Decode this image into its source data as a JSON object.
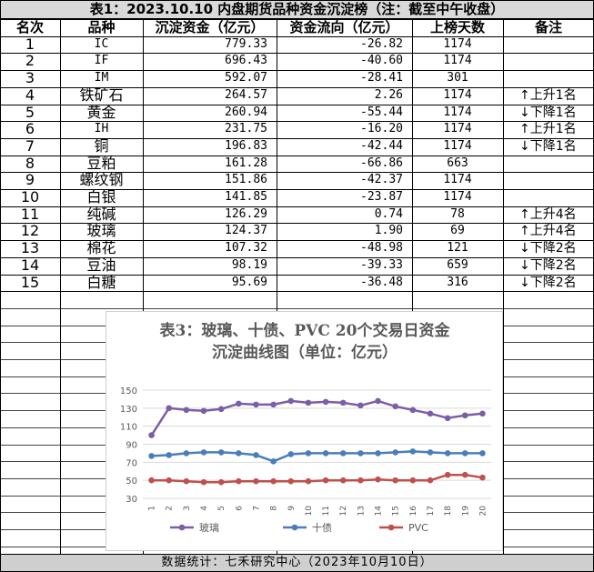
{
  "table": {
    "title": "表1：2023.10.10 内盘期货品种资金沉淀榜（注：截至中午收盘）",
    "headers": [
      "名次",
      "品种",
      "沉淀资金（亿元）",
      "资金流向（亿元）",
      "上榜天数",
      "备注"
    ],
    "rows": [
      {
        "rank": "1",
        "name": "IC",
        "fund": "779.33",
        "flow": "-26.82",
        "days": "1174",
        "arrow": "",
        "note": ""
      },
      {
        "rank": "2",
        "name": "IF",
        "fund": "696.43",
        "flow": "-40.60",
        "days": "1174",
        "arrow": "",
        "note": ""
      },
      {
        "rank": "3",
        "name": "IM",
        "fund": "592.07",
        "flow": "-28.41",
        "days": "301",
        "arrow": "",
        "note": ""
      },
      {
        "rank": "4",
        "name": "铁矿石",
        "fund": "264.57",
        "flow": "2.26",
        "days": "1174",
        "arrow": "↑",
        "note": "上升1名"
      },
      {
        "rank": "5",
        "name": "黄金",
        "fund": "260.94",
        "flow": "-55.44",
        "days": "1174",
        "arrow": "↓",
        "note": "下降1名"
      },
      {
        "rank": "6",
        "name": "IH",
        "fund": "231.75",
        "flow": "-16.20",
        "days": "1174",
        "arrow": "↑",
        "note": "上升1名"
      },
      {
        "rank": "7",
        "name": "铜",
        "fund": "196.83",
        "flow": "-42.44",
        "days": "1174",
        "arrow": "↓",
        "note": "下降1名"
      },
      {
        "rank": "8",
        "name": "豆粕",
        "fund": "161.28",
        "flow": "-66.86",
        "days": "663",
        "arrow": "",
        "note": ""
      },
      {
        "rank": "9",
        "name": "螺纹钢",
        "fund": "151.86",
        "flow": "-42.37",
        "days": "1174",
        "arrow": "",
        "note": ""
      },
      {
        "rank": "10",
        "name": "白银",
        "fund": "141.85",
        "flow": "-23.87",
        "days": "1174",
        "arrow": "",
        "note": ""
      },
      {
        "rank": "11",
        "name": "纯碱",
        "fund": "126.29",
        "flow": "0.74",
        "days": "78",
        "arrow": "↑",
        "note": "上升4名"
      },
      {
        "rank": "12",
        "name": "玻璃",
        "fund": "124.37",
        "flow": "1.90",
        "days": "69",
        "arrow": "↑",
        "note": "上升4名"
      },
      {
        "rank": "13",
        "name": "棉花",
        "fund": "107.32",
        "flow": "-48.98",
        "days": "121",
        "arrow": "↓",
        "note": "下降2名"
      },
      {
        "rank": "14",
        "name": "豆油",
        "fund": "98.19",
        "flow": "-39.33",
        "days": "659",
        "arrow": "↓",
        "note": "下降2名"
      },
      {
        "rank": "15",
        "name": "白糖",
        "fund": "95.69",
        "flow": "-36.48",
        "days": "316",
        "arrow": "↓",
        "note": "下降2名"
      }
    ]
  },
  "footer": "数据统计：七禾研究中心（2023年10月10日）",
  "chart_data": {
    "type": "line",
    "title": "表3：玻璃、十债、PVC 20个交易日资金沉淀曲线图（单位：亿元）",
    "title_lines": [
      "表3：玻璃、十债、PVC 20个交易日资金",
      "沉淀曲线图（单位：亿元）"
    ],
    "x": [
      "1",
      "2",
      "3",
      "4",
      "5",
      "6",
      "7",
      "8",
      "9",
      "10",
      "11",
      "12",
      "13",
      "14",
      "15",
      "16",
      "17",
      "18",
      "19",
      "20"
    ],
    "ylim": [
      30,
      150
    ],
    "yticks": [
      30,
      50,
      70,
      90,
      110,
      130,
      150
    ],
    "grid": true,
    "legend_position": "bottom",
    "series": [
      {
        "name": "玻璃",
        "color": "#7b5ea7",
        "values": [
          100,
          130,
          128,
          127,
          129,
          135,
          134,
          134,
          138,
          136,
          137,
          136,
          133,
          138,
          132,
          128,
          124,
          119,
          122,
          124
        ]
      },
      {
        "name": "十债",
        "color": "#4a7ebb",
        "values": [
          77,
          78,
          80,
          81,
          81,
          80,
          78,
          71,
          79,
          80,
          80,
          80,
          80,
          80,
          81,
          82,
          81,
          80,
          80,
          80
        ]
      },
      {
        "name": "PVC",
        "color": "#c0504d",
        "values": [
          50,
          50,
          49,
          48,
          48,
          49,
          49,
          49,
          49,
          49,
          50,
          50,
          50,
          51,
          50,
          50,
          50,
          56,
          56,
          53
        ]
      }
    ]
  }
}
